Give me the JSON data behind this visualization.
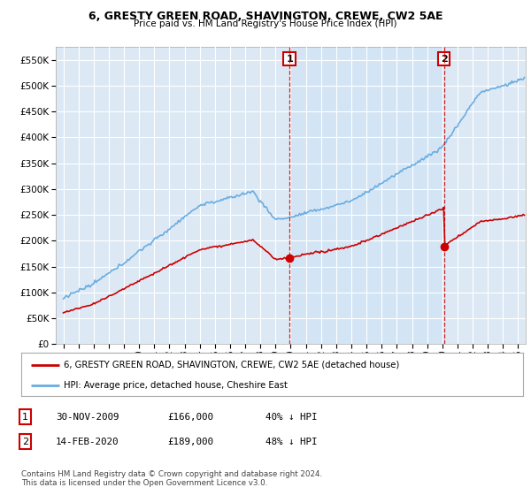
{
  "title": "6, GRESTY GREEN ROAD, SHAVINGTON, CREWE, CW2 5AE",
  "subtitle": "Price paid vs. HM Land Registry's House Price Index (HPI)",
  "background_color": "#dce9f5",
  "plot_bg_color": "#dce9f5",
  "hpi_color": "#6aace0",
  "price_color": "#cc0000",
  "shade_color": "#d0e4f5",
  "marker1_date_num": 2009.917,
  "marker2_date_num": 2020.12,
  "marker1_price": 166000,
  "marker2_price": 189000,
  "marker1_label": "1",
  "marker2_label": "2",
  "legend_house": "6, GRESTY GREEN ROAD, SHAVINGTON, CREWE, CW2 5AE (detached house)",
  "legend_hpi": "HPI: Average price, detached house, Cheshire East",
  "table_row1": [
    "1",
    "30-NOV-2009",
    "£166,000",
    "40% ↓ HPI"
  ],
  "table_row2": [
    "2",
    "14-FEB-2020",
    "£189,000",
    "48% ↓ HPI"
  ],
  "footnote": "Contains HM Land Registry data © Crown copyright and database right 2024.\nThis data is licensed under the Open Government Licence v3.0.",
  "ylim": [
    0,
    575000
  ],
  "yticks": [
    0,
    50000,
    100000,
    150000,
    200000,
    250000,
    300000,
    350000,
    400000,
    450000,
    500000,
    550000
  ],
  "xlim_start": 1994.5,
  "xlim_end": 2025.5
}
